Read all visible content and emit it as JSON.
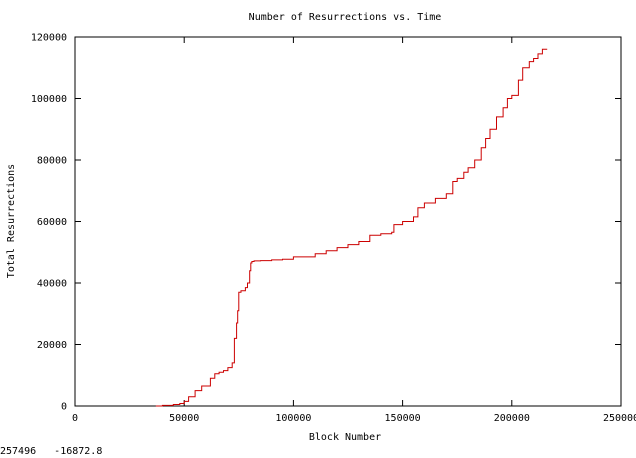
{
  "status": {
    "coordinate_readout": "257496   -16872.8"
  },
  "chart_data": {
    "type": "line",
    "title": "Number of Resurrections vs. Time",
    "xlabel": "Block Number",
    "ylabel": "Total Resurrections",
    "xlim": [
      0,
      250000
    ],
    "ylim": [
      0,
      120000
    ],
    "xticks": [
      0,
      50000,
      100000,
      150000,
      200000,
      250000
    ],
    "yticks": [
      0,
      20000,
      40000,
      60000,
      80000,
      100000,
      120000
    ],
    "xtick_labels": [
      "0",
      "50000",
      "100000",
      "150000",
      "200000",
      "250000"
    ],
    "ytick_labels": [
      "0",
      "20000",
      "40000",
      "60000",
      "80000",
      "100000",
      "120000"
    ],
    "grid": false,
    "legend": "none",
    "series": [
      {
        "color": "#cc0000",
        "x": [
          37000,
          40000,
          45000,
          48000,
          50000,
          52000,
          55000,
          58000,
          62000,
          64000,
          66000,
          68000,
          70000,
          72000,
          73000,
          74000,
          74500,
          75000,
          76000,
          78000,
          79000,
          80000,
          80500,
          81000,
          82000,
          85000,
          90000,
          95000,
          100000,
          110000,
          115000,
          120000,
          125000,
          130000,
          135000,
          140000,
          145000,
          146000,
          150000,
          155000,
          157000,
          160000,
          165000,
          170000,
          173000,
          175000,
          178000,
          180000,
          183000,
          186000,
          188000,
          190000,
          193000,
          196000,
          198000,
          200000,
          203000,
          205000,
          208000,
          210000,
          212000,
          214000,
          216000
        ],
        "y": [
          0,
          200,
          500,
          800,
          1500,
          3000,
          5000,
          6500,
          9000,
          10500,
          11000,
          11500,
          12500,
          14000,
          22000,
          27000,
          31000,
          37000,
          37500,
          38500,
          40000,
          44000,
          46500,
          47000,
          47200,
          47300,
          47500,
          47700,
          48500,
          49500,
          50500,
          51500,
          52500,
          53500,
          55500,
          56000,
          56500,
          59000,
          60000,
          61500,
          64500,
          66000,
          67500,
          69000,
          73000,
          74000,
          76000,
          77500,
          80000,
          84000,
          87000,
          90000,
          94000,
          97000,
          100000,
          101000,
          106000,
          110000,
          112000,
          113000,
          114500,
          116000,
          116200
        ]
      }
    ]
  }
}
